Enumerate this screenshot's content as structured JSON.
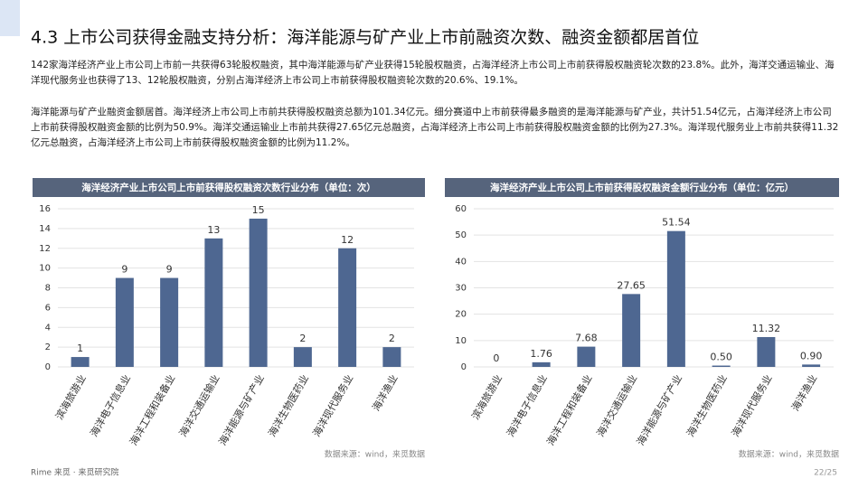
{
  "title": "4.3 上市公司获得金融支持分析：海洋能源与矿产业上市前融资次数、融资金额都居首位",
  "paragraphs": [
    "142家海洋经济产业上市公司上市前一共获得63轮股权融资，其中海洋能源与矿产业获得15轮股权融资，占海洋经济上市公司上市前获得股权融资轮次数的23.8%。此外，海洋交通运输业、海洋现代服务业也获得了13、12轮股权融资，分别占海洋经济上市公司上市前获得股权融资轮次数的20.6%、19.1%。",
    "海洋能源与矿产业融资金额居首。海洋经济上市公司上市前共获得股权融资总额为101.34亿元。细分赛道中上市前获得最多融资的是海洋能源与矿产业，共计51.54亿元，占海洋经济上市公司上市前获得股权融资金额的比例为50.9%。海洋交通运输业上市前共获得27.65亿元总融资，占海洋经济上市公司上市前获得股权融资金额的比例为27.3%。海洋现代服务业上市前共获得11.32亿元总融资，占海洋经济上市公司上市前获得股权融资金额的比例为11.2%。"
  ],
  "chart_data": [
    {
      "type": "bar",
      "title": "海洋经济产业上市公司上市前获得股权融资次数行业分布（单位：次）",
      "categories": [
        "滨海旅游业",
        "海洋电子信息业",
        "海洋工程和装备业",
        "海洋交通运输业",
        "海洋能源与矿产业",
        "海洋生物医药业",
        "海洋现代服务业",
        "海洋渔业"
      ],
      "values": [
        1,
        9,
        9,
        13,
        15,
        2,
        12,
        2
      ],
      "color": "#4e6791",
      "ylim": [
        0,
        16
      ],
      "yticks": [
        0,
        2,
        4,
        6,
        8,
        10,
        12,
        14,
        16
      ],
      "grid": true,
      "source": "数据来源：wind，来觅数据"
    },
    {
      "type": "bar",
      "title": "海洋经济产业上市公司上市前获得股权融资金额行业分布（单位：亿元）",
      "categories": [
        "滨海旅游业",
        "海洋电子信息业",
        "海洋工程和装备业",
        "海洋交通运输业",
        "海洋能源与矿产业",
        "海洋生物医药业",
        "海洋现代服务业",
        "海洋渔业"
      ],
      "values": [
        0,
        1.76,
        7.68,
        27.65,
        51.54,
        0.5,
        11.32,
        0.9
      ],
      "value_labels": [
        "0",
        "1.76",
        "7.68",
        "27.65",
        "51.54",
        "0.50",
        "11.32",
        "0.90"
      ],
      "color": "#4e6791",
      "ylim": [
        0,
        60
      ],
      "yticks": [
        0,
        10,
        20,
        30,
        40,
        50,
        60
      ],
      "grid": true,
      "source": "数据来源：wind，来觅数据"
    }
  ],
  "footer": {
    "brand": "Rime 来觅 · 来觅研究院",
    "page": "22/25"
  }
}
